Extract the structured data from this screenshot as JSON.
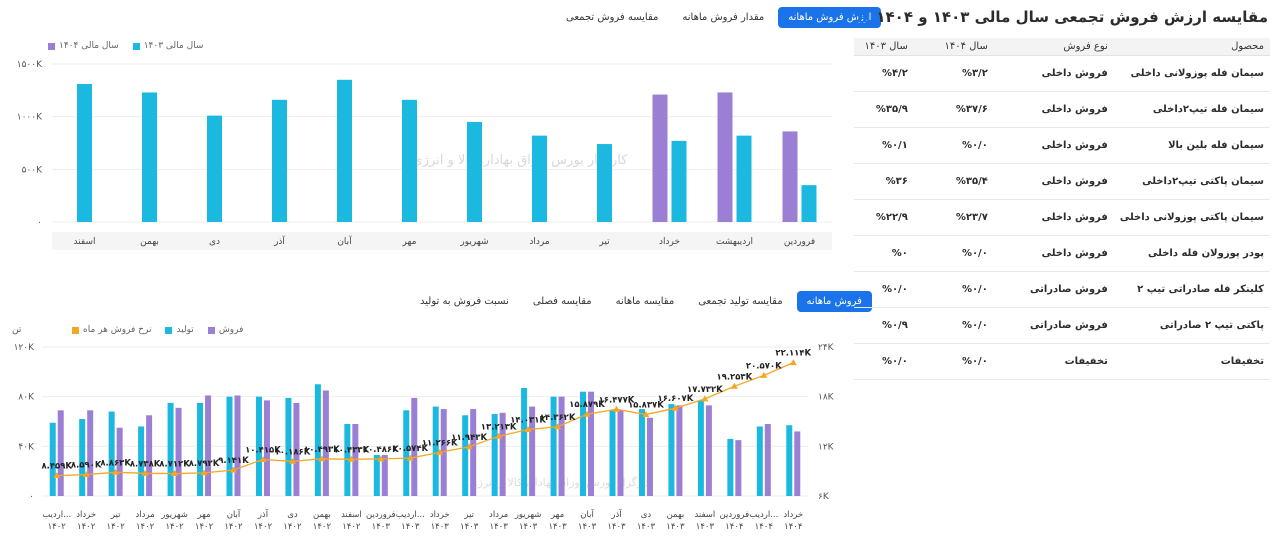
{
  "top_chart": {
    "tabs": [
      "ارزش فروش ماهانه",
      "مقدار فروش ماهانه",
      "مقایسه فروش تجمعی"
    ],
    "legend": [
      {
        "label": "سال مالی ۱۴۰۴",
        "color": "#9b7fd4"
      },
      {
        "label": "سال مالی ۱۴۰۳",
        "color": "#1bb8e0"
      }
    ]
  },
  "bottom_chart": {
    "tabs": [
      "فروش ماهانه",
      "مقایسه تولید تجمعی",
      "مقایسه ماهانه",
      "مقایسه فصلی",
      "نسبت فروش به تولید"
    ],
    "legend": [
      {
        "label": "فروش",
        "color": "#9b7fd4"
      },
      {
        "label": "تولید",
        "color": "#1bb8e0"
      },
      {
        "label": "نرخ فروش هر ماه",
        "color": "#f5a623"
      }
    ],
    "y_left_unit": "تن"
  },
  "chart_data": [
    {
      "type": "bar",
      "categories": [
        "فروردین",
        "اردیبهشت",
        "خرداد",
        "تیر",
        "مرداد",
        "شهریور",
        "مهر",
        "آبان",
        "آذر",
        "دی",
        "بهمن",
        "اسفند"
      ],
      "series": [
        {
          "name": "سال مالی ۱۴۰۳",
          "values": [
            350,
            820,
            770,
            740,
            820,
            950,
            1160,
            1350,
            1160,
            1010,
            1230,
            1310
          ]
        },
        {
          "name": "سال مالی ۱۴۰۴",
          "values": [
            860,
            1230,
            1210,
            null,
            null,
            null,
            null,
            null,
            null,
            null,
            null,
            null
          ]
        }
      ],
      "yticks": [
        "۰",
        "۵۰۰K",
        "۱۰۰۰K",
        "۱۵۰۰K"
      ],
      "ylim": [
        0,
        1500
      ]
    },
    {
      "type": "bar",
      "categories": [
        "اردیبهشت ۱۴۰۲",
        "خرداد ۱۴۰۲",
        "تیر ۱۴۰۲",
        "مرداد ۱۴۰۲",
        "شهریور ۱۴۰۲",
        "مهر ۱۴۰۲",
        "آبان ۱۴۰۲",
        "آذر ۱۴۰۲",
        "دی ۱۴۰۲",
        "بهمن ۱۴۰۲",
        "اسفند ۱۴۰۲",
        "فروردین ۱۴۰۳",
        "اردیبهشت ۱۴۰۳",
        "خرداد ۱۴۰۳",
        "تیر ۱۴۰۳",
        "مرداد ۱۴۰۳",
        "شهریور ۱۴۰۳",
        "مهر ۱۴۰۳",
        "آبان ۱۴۰۳",
        "آذر ۱۴۰۳",
        "دی ۱۴۰۳",
        "بهمن ۱۴۰۳",
        "اسفند ۱۴۰۳",
        "فروردین ۱۴۰۴",
        "اردیبهشت ۱۴۰۴",
        "خرداد ۱۴۰۴"
      ],
      "category_labels": [
        [
          "اردیب...",
          "۱۴۰۲"
        ],
        [
          "خرداد",
          "۱۴۰۲"
        ],
        [
          "تیر",
          "۱۴۰۲"
        ],
        [
          "مرداد",
          "۱۴۰۲"
        ],
        [
          "شهریور",
          "۱۴۰۲"
        ],
        [
          "مهر",
          "۱۴۰۲"
        ],
        [
          "آبان",
          "۱۴۰۲"
        ],
        [
          "آذر",
          "۱۴۰۲"
        ],
        [
          "دی",
          "۱۴۰۲"
        ],
        [
          "بهمن",
          "۱۴۰۲"
        ],
        [
          "اسفند",
          "۱۴۰۲"
        ],
        [
          "فروردین",
          "۱۴۰۳"
        ],
        [
          "اردیب...",
          "۱۴۰۳"
        ],
        [
          "خرداد",
          "۱۴۰۳"
        ],
        [
          "تیر",
          "۱۴۰۳"
        ],
        [
          "مرداد",
          "۱۴۰۳"
        ],
        [
          "شهریور",
          "۱۴۰۳"
        ],
        [
          "مهر",
          "۱۴۰۳"
        ],
        [
          "آبان",
          "۱۴۰۳"
        ],
        [
          "آذر",
          "۱۴۰۳"
        ],
        [
          "دی",
          "۱۴۰۳"
        ],
        [
          "بهمن",
          "۱۴۰۳"
        ],
        [
          "اسفند",
          "۱۴۰۳"
        ],
        [
          "فروردین",
          "۱۴۰۴"
        ],
        [
          "اردیب...",
          "۱۴۰۴"
        ],
        [
          "خرداد",
          "۱۴۰۴"
        ]
      ],
      "series": [
        {
          "name": "تولید",
          "values": [
            59,
            62,
            68,
            56,
            75,
            75,
            80,
            80,
            79,
            90,
            58,
            33,
            69,
            72,
            65,
            66,
            87,
            80,
            84,
            69,
            70,
            74,
            77,
            46,
            56,
            57
          ]
        },
        {
          "name": "فروش",
          "values": [
            69,
            69,
            55,
            65,
            71,
            81,
            81,
            77,
            75,
            85,
            58,
            33,
            79,
            70,
            70,
            67,
            72,
            80,
            84,
            69,
            63,
            73,
            73,
            45,
            58,
            52
          ]
        },
        {
          "name": "نرخ فروش هر ماه",
          "values": [
            8459,
            8590,
            8863,
            8738,
            8712,
            8792,
            9141,
            10415,
            10186,
            10493,
            10433,
            10486,
            10574,
            11266,
            11943,
            13213,
            14031,
            14362,
            15879,
            16477,
            15837,
            16607,
            17732,
            19253,
            20570,
            22114
          ]
        }
      ],
      "line_labels": [
        "۸.۴۵۹K",
        "۸.۵۹۰K",
        "۸.۸۶۳K",
        "۸.۷۳۸K",
        "۸.۷۱۲K",
        "۸.۷۹۲K",
        "۹.۱۴۱K",
        "۱۰.۴۱۵K",
        "۱۰.۱۸۶K",
        "۱۰.۴۹۳K",
        "۱۰.۴۳۳K",
        "۱۰.۴۸۶K",
        "۱۰.۵۷۴K",
        "۱۱.۲۶۶K",
        "۱۱.۹۴۳K",
        "۱۳.۲۱۳K",
        "۱۴.۰۳۱K",
        "۱۴.۳۶۲K",
        "۱۵.۸۷۹K",
        "۱۶.۴۷۷K",
        "۱۵.۸۳۷K",
        "۱۶.۶۰۷K",
        "۱۷.۷۳۲K",
        "۱۹.۲۵۳K",
        "۲۰.۵۷۰K",
        "۲۲.۱۱۴K"
      ],
      "y_left_ticks": [
        "۰",
        "۴۰K",
        "۸۰K",
        "۱۲۰K"
      ],
      "y_left_lim": [
        0,
        120
      ],
      "y_right_ticks": [
        "۶K",
        "۱۲K",
        "۱۸K",
        "۲۴K"
      ],
      "y_right_lim": [
        6000,
        24000
      ]
    }
  ],
  "table": {
    "title": "مقایسه ارزش فروش تجمعی سال مالی ۱۴۰۳ و ۱۴۰۴",
    "headers": [
      "محصول",
      "نوع فروش",
      "سال ۱۴۰۴",
      "سال ۱۴۰۳"
    ],
    "rows": [
      [
        "سیمان فله پوزولانی داخلی",
        "فروش داخلی",
        "%۳/۲",
        "%۴/۲"
      ],
      [
        "سیمان فله تیپ۲داخلی",
        "فروش داخلی",
        "%۳۷/۶",
        "%۳۵/۹"
      ],
      [
        "سیمان فله بلین بالا",
        "فروش داخلی",
        "%۰/۰",
        "%۰/۱"
      ],
      [
        "سیمان پاکتی تیپ۲داخلی",
        "فروش داخلی",
        "%۳۵/۴",
        "%۳۶"
      ],
      [
        "سیمان پاکتی پوزولانی داخلی",
        "فروش داخلی",
        "%۲۳/۷",
        "%۲۲/۹"
      ],
      [
        "پودر پوزولان فله داخلی",
        "فروش داخلی",
        "%۰/۰",
        "%۰"
      ],
      [
        "کلینکر فله صادراتی تیپ ۲",
        "فروش صادراتی",
        "%۰/۰",
        "%۰/۰"
      ],
      [
        "پاکتی تیپ ۲ صادراتی",
        "فروش صادراتی",
        "%۰/۰",
        "%۰/۹"
      ],
      [
        "تخفیفات",
        "تخفیفات",
        "%۰/۰",
        "%۰/۰"
      ]
    ]
  },
  "watermark": {
    "text": "کارگزار بورس اوراق بهادار، کالا و انرژی"
  }
}
